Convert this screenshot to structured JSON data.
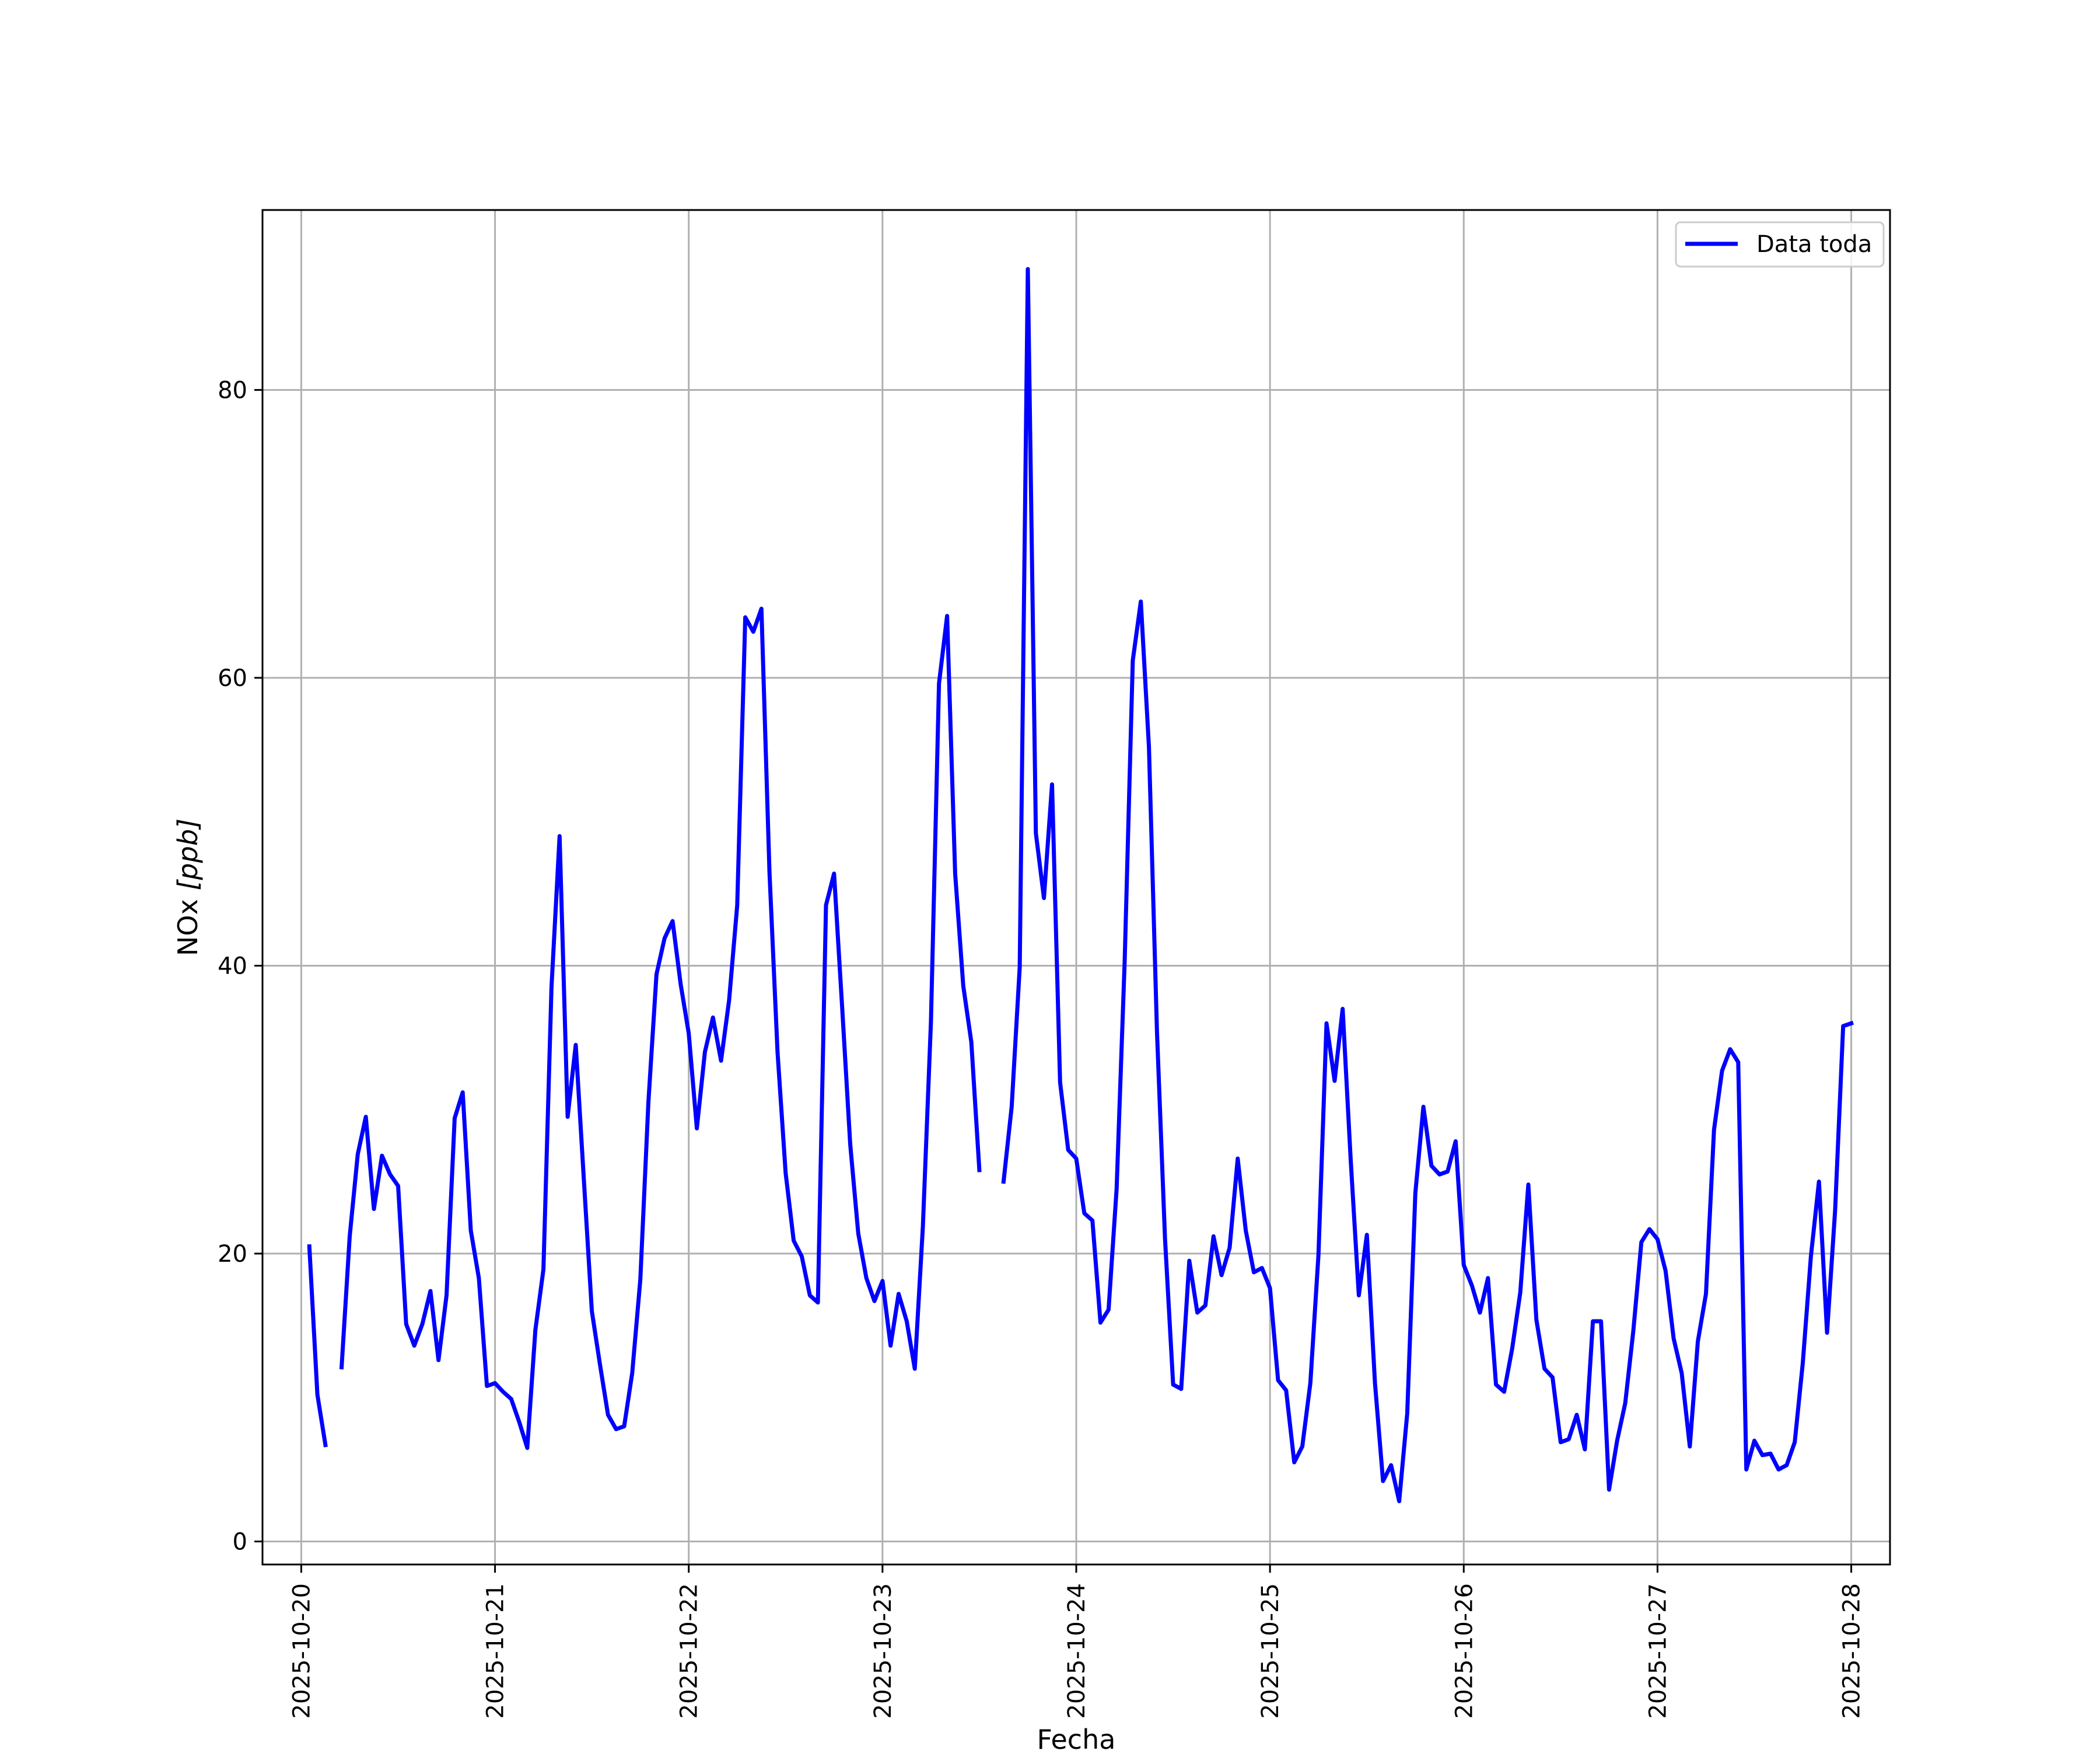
{
  "chart_data": {
    "type": "line",
    "title": "",
    "xlabel": "Fecha",
    "ylabel_main": "NOx ",
    "ylabel_unit": "[ppb]",
    "xlim": [
      "2025-10-19T19:12",
      "2025-10-28T04:48"
    ],
    "ylim": [
      -1.6,
      92.5
    ],
    "grid": true,
    "legend_position": "top-right",
    "x_ticks": [
      "2025-10-20",
      "2025-10-21",
      "2025-10-22",
      "2025-10-23",
      "2025-10-24",
      "2025-10-25",
      "2025-10-26",
      "2025-10-27",
      "2025-10-28"
    ],
    "y_ticks": [
      "0",
      "20",
      "40",
      "60",
      "80"
    ],
    "series": [
      {
        "name": "Data toda",
        "color": "#0000ff",
        "segments": [
          [
            [
              "2025-10-20T01:00",
              20.5
            ],
            [
              "2025-10-20T02:00",
              10.2
            ],
            [
              "2025-10-20T03:00",
              6.7
            ]
          ],
          [
            [
              "2025-10-20T05:00",
              12.1
            ],
            [
              "2025-10-20T06:00",
              21.2
            ],
            [
              "2025-10-20T07:00",
              26.9
            ],
            [
              "2025-10-20T08:00",
              29.5
            ],
            [
              "2025-10-20T09:00",
              23.1
            ],
            [
              "2025-10-20T10:00",
              26.8
            ],
            [
              "2025-10-20T11:00",
              25.5
            ],
            [
              "2025-10-20T12:00",
              24.7
            ],
            [
              "2025-10-20T13:00",
              15.1
            ],
            [
              "2025-10-20T14:00",
              13.6
            ],
            [
              "2025-10-20T15:00",
              15.1
            ],
            [
              "2025-10-20T16:00",
              17.4
            ],
            [
              "2025-10-20T17:00",
              12.6
            ],
            [
              "2025-10-20T18:00",
              17.1
            ],
            [
              "2025-10-20T19:00",
              29.4
            ],
            [
              "2025-10-20T20:00",
              31.2
            ],
            [
              "2025-10-20T21:00",
              21.6
            ],
            [
              "2025-10-20T22:00",
              18.3
            ],
            [
              "2025-10-20T23:00",
              10.8
            ],
            [
              "2025-10-21T00:00",
              11.0
            ],
            [
              "2025-10-21T01:00",
              10.4
            ],
            [
              "2025-10-21T02:00",
              9.9
            ],
            [
              "2025-10-21T03:00",
              8.3
            ],
            [
              "2025-10-21T04:00",
              6.5
            ],
            [
              "2025-10-21T05:00",
              14.7
            ],
            [
              "2025-10-21T06:00",
              18.9
            ],
            [
              "2025-10-21T07:00",
              38.5
            ],
            [
              "2025-10-21T08:00",
              49.0
            ],
            [
              "2025-10-21T09:00",
              29.5
            ],
            [
              "2025-10-21T10:00",
              34.5
            ],
            [
              "2025-10-21T11:00",
              25.2
            ],
            [
              "2025-10-21T12:00",
              16.0
            ],
            [
              "2025-10-21T13:00",
              12.3
            ],
            [
              "2025-10-21T14:00",
              8.8
            ],
            [
              "2025-10-21T15:00",
              7.8
            ],
            [
              "2025-10-21T16:00",
              8.0
            ],
            [
              "2025-10-21T17:00",
              11.7
            ],
            [
              "2025-10-21T18:00",
              18.2
            ],
            [
              "2025-10-21T19:00",
              30.5
            ],
            [
              "2025-10-21T20:00",
              39.4
            ],
            [
              "2025-10-21T21:00",
              41.9
            ],
            [
              "2025-10-21T22:00",
              43.1
            ],
            [
              "2025-10-21T23:00",
              38.7
            ],
            [
              "2025-10-22T00:00",
              35.3
            ],
            [
              "2025-10-22T01:00",
              28.7
            ],
            [
              "2025-10-22T02:00",
              34.0
            ],
            [
              "2025-10-22T03:00",
              36.4
            ],
            [
              "2025-10-22T04:00",
              33.4
            ],
            [
              "2025-10-22T05:00",
              37.6
            ],
            [
              "2025-10-22T06:00",
              44.2
            ],
            [
              "2025-10-22T07:00",
              64.2
            ],
            [
              "2025-10-22T08:00",
              63.2
            ],
            [
              "2025-10-22T09:00",
              64.8
            ],
            [
              "2025-10-22T10:00",
              46.5
            ],
            [
              "2025-10-22T11:00",
              34.0
            ],
            [
              "2025-10-22T12:00",
              25.6
            ],
            [
              "2025-10-22T13:00",
              20.9
            ],
            [
              "2025-10-22T14:00",
              19.8
            ],
            [
              "2025-10-22T15:00",
              17.1
            ],
            [
              "2025-10-22T16:00",
              16.6
            ],
            [
              "2025-10-22T17:00",
              44.2
            ],
            [
              "2025-10-22T18:00",
              46.4
            ],
            [
              "2025-10-22T19:00",
              37.1
            ],
            [
              "2025-10-22T20:00",
              27.6
            ],
            [
              "2025-10-22T21:00",
              21.4
            ],
            [
              "2025-10-22T22:00",
              18.3
            ],
            [
              "2025-10-22T23:00",
              16.7
            ],
            [
              "2025-10-23T00:00",
              18.1
            ],
            [
              "2025-10-23T01:00",
              13.6
            ],
            [
              "2025-10-23T02:00",
              17.2
            ],
            [
              "2025-10-23T03:00",
              15.3
            ],
            [
              "2025-10-23T04:00",
              12.0
            ],
            [
              "2025-10-23T05:00",
              21.9
            ],
            [
              "2025-10-23T06:00",
              36.1
            ],
            [
              "2025-10-23T07:00",
              59.6
            ],
            [
              "2025-10-23T08:00",
              64.3
            ],
            [
              "2025-10-23T09:00",
              46.4
            ],
            [
              "2025-10-23T10:00",
              38.6
            ],
            [
              "2025-10-23T11:00",
              34.7
            ],
            [
              "2025-10-23T12:00",
              25.8
            ]
          ],
          [
            [
              "2025-10-23T15:00",
              25.0
            ],
            [
              "2025-10-23T16:00",
              30.2
            ],
            [
              "2025-10-23T17:00",
              39.9
            ],
            [
              "2025-10-23T18:00",
              88.4
            ],
            [
              "2025-10-23T19:00",
              49.2
            ],
            [
              "2025-10-23T20:00",
              44.7
            ],
            [
              "2025-10-23T21:00",
              52.6
            ],
            [
              "2025-10-23T22:00",
              31.9
            ],
            [
              "2025-10-23T23:00",
              27.2
            ],
            [
              "2025-10-24T00:00",
              26.6
            ],
            [
              "2025-10-24T01:00",
              22.8
            ],
            [
              "2025-10-24T02:00",
              22.3
            ],
            [
              "2025-10-24T03:00",
              15.2
            ],
            [
              "2025-10-24T04:00",
              16.1
            ],
            [
              "2025-10-24T05:00",
              24.5
            ],
            [
              "2025-10-24T06:00",
              40.3
            ],
            [
              "2025-10-24T07:00",
              61.2
            ],
            [
              "2025-10-24T08:00",
              65.3
            ],
            [
              "2025-10-24T09:00",
              55.2
            ],
            [
              "2025-10-24T10:00",
              35.4
            ],
            [
              "2025-10-24T11:00",
              21.0
            ],
            [
              "2025-10-24T12:00",
              10.9
            ],
            [
              "2025-10-24T13:00",
              10.6
            ],
            [
              "2025-10-24T14:00",
              19.5
            ],
            [
              "2025-10-24T15:00",
              15.9
            ],
            [
              "2025-10-24T16:00",
              16.4
            ],
            [
              "2025-10-24T17:00",
              21.2
            ],
            [
              "2025-10-24T18:00",
              18.5
            ],
            [
              "2025-10-24T19:00",
              20.4
            ],
            [
              "2025-10-24T20:00",
              26.6
            ],
            [
              "2025-10-24T21:00",
              21.6
            ],
            [
              "2025-10-24T22:00",
              18.7
            ],
            [
              "2025-10-24T23:00",
              19.0
            ],
            [
              "2025-10-25T00:00",
              17.6
            ],
            [
              "2025-10-25T01:00",
              11.2
            ],
            [
              "2025-10-25T02:00",
              10.5
            ],
            [
              "2025-10-25T03:00",
              5.5
            ],
            [
              "2025-10-25T04:00",
              6.6
            ],
            [
              "2025-10-25T05:00",
              11.0
            ],
            [
              "2025-10-25T06:00",
              19.9
            ],
            [
              "2025-10-25T07:00",
              36.0
            ],
            [
              "2025-10-25T08:00",
              32.0
            ],
            [
              "2025-10-25T09:00",
              37.0
            ],
            [
              "2025-10-25T10:00",
              26.5
            ],
            [
              "2025-10-25T11:00",
              17.1
            ],
            [
              "2025-10-25T12:00",
              21.3
            ],
            [
              "2025-10-25T13:00",
              11.0
            ],
            [
              "2025-10-25T14:00",
              4.2
            ],
            [
              "2025-10-25T15:00",
              5.3
            ],
            [
              "2025-10-25T16:00",
              2.8
            ],
            [
              "2025-10-25T17:00",
              8.9
            ],
            [
              "2025-10-25T18:00",
              24.2
            ],
            [
              "2025-10-25T19:00",
              30.2
            ],
            [
              "2025-10-25T20:00",
              26.1
            ],
            [
              "2025-10-25T21:00",
              25.5
            ],
            [
              "2025-10-25T22:00",
              25.7
            ],
            [
              "2025-10-25T23:00",
              27.8
            ],
            [
              "2025-10-26T00:00",
              19.2
            ],
            [
              "2025-10-26T01:00",
              17.8
            ],
            [
              "2025-10-26T02:00",
              15.9
            ],
            [
              "2025-10-26T03:00",
              18.3
            ],
            [
              "2025-10-26T04:00",
              10.9
            ],
            [
              "2025-10-26T05:00",
              10.4
            ],
            [
              "2025-10-26T06:00",
              13.4
            ],
            [
              "2025-10-26T07:00",
              17.3
            ],
            [
              "2025-10-26T08:00",
              24.8
            ],
            [
              "2025-10-26T09:00",
              15.4
            ],
            [
              "2025-10-26T10:00",
              12.0
            ],
            [
              "2025-10-26T11:00",
              11.4
            ],
            [
              "2025-10-26T12:00",
              6.9
            ],
            [
              "2025-10-26T13:00",
              7.1
            ],
            [
              "2025-10-26T14:00",
              8.8
            ],
            [
              "2025-10-26T15:00",
              6.4
            ],
            [
              "2025-10-26T16:00",
              15.3
            ],
            [
              "2025-10-26T17:00",
              15.3
            ],
            [
              "2025-10-26T18:00",
              3.6
            ],
            [
              "2025-10-26T19:00",
              7.0
            ],
            [
              "2025-10-26T20:00",
              9.6
            ],
            [
              "2025-10-26T21:00",
              14.6
            ],
            [
              "2025-10-26T22:00",
              20.8
            ],
            [
              "2025-10-26T23:00",
              21.7
            ],
            [
              "2025-10-27T00:00",
              21.0
            ],
            [
              "2025-10-27T01:00",
              18.8
            ],
            [
              "2025-10-27T02:00",
              14.1
            ],
            [
              "2025-10-27T03:00",
              11.7
            ],
            [
              "2025-10-27T04:00",
              6.6
            ],
            [
              "2025-10-27T05:00",
              13.9
            ],
            [
              "2025-10-27T06:00",
              17.2
            ],
            [
              "2025-10-27T07:00",
              28.6
            ],
            [
              "2025-10-27T08:00",
              32.7
            ],
            [
              "2025-10-27T09:00",
              34.2
            ],
            [
              "2025-10-27T10:00",
              33.3
            ],
            [
              "2025-10-27T11:00",
              5.0
            ],
            [
              "2025-10-27T12:00",
              7.0
            ],
            [
              "2025-10-27T13:00",
              6.0
            ],
            [
              "2025-10-27T14:00",
              6.1
            ],
            [
              "2025-10-27T15:00",
              5.0
            ],
            [
              "2025-10-27T16:00",
              5.3
            ],
            [
              "2025-10-27T17:00",
              6.9
            ],
            [
              "2025-10-27T18:00",
              12.4
            ],
            [
              "2025-10-27T19:00",
              19.8
            ],
            [
              "2025-10-27T20:00",
              25.0
            ],
            [
              "2025-10-27T21:00",
              14.5
            ],
            [
              "2025-10-27T22:00",
              23.0
            ],
            [
              "2025-10-27T23:00",
              35.8
            ],
            [
              "2025-10-28T00:00",
              36.0
            ]
          ]
        ]
      }
    ]
  }
}
